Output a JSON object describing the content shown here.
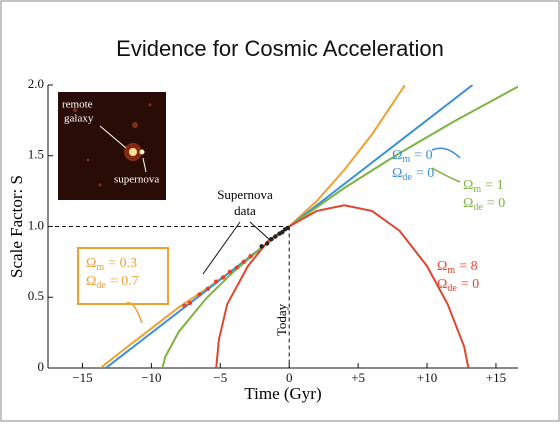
{
  "chart_data": {
    "type": "line",
    "title": "Evidence for Cosmic Acceleration",
    "xlabel": "Time (Gyr)",
    "ylabel": "Scale Factor:  S",
    "xlim": [
      -17.5,
      16.6
    ],
    "ylim": [
      0,
      2
    ],
    "xticks": [
      {
        "value": -15,
        "label": "−15"
      },
      {
        "value": -10,
        "label": "−10"
      },
      {
        "value": -5,
        "label": "−5"
      },
      0,
      {
        "value": 5,
        "label": "+5"
      },
      {
        "value": 10,
        "label": "+10"
      },
      {
        "value": 15,
        "label": "+15"
      }
    ],
    "yticks": [
      0,
      0.5,
      {
        "value": 1,
        "label": "1.0"
      },
      1.5,
      {
        "value": 2,
        "label": "2.0"
      }
    ],
    "series": [
      {
        "color": "#f0a030",
        "label": [
          {
            "symbol": "Ω",
            "sub": "m",
            "text": "= 0.3"
          },
          {
            "symbol": "Ω",
            "sub": "de",
            "text": "= 0.7"
          }
        ],
        "x": [
          -13.7,
          -12,
          -10,
          -8,
          -6,
          -4,
          -2,
          0,
          2,
          4,
          6,
          8.4
        ],
        "values": [
          0,
          0.13,
          0.28,
          0.43,
          0.56,
          0.7,
          0.85,
          1,
          1.18,
          1.4,
          1.65,
          2
        ]
      },
      {
        "color": "#3a8fdc",
        "label": [
          {
            "symbol": "Ω",
            "sub": "m",
            "text": "= 0"
          },
          {
            "symbol": "Ω",
            "sub": "de",
            "text": "= 0"
          }
        ],
        "x": [
          -13.3,
          0,
          13.3
        ],
        "values": [
          0,
          1,
          2
        ]
      },
      {
        "color": "#7cb342",
        "label": [
          {
            "symbol": "Ω",
            "sub": "m",
            "text": "= 1"
          },
          {
            "symbol": "Ω",
            "sub": "de",
            "text": "= 0"
          }
        ],
        "x": [
          -9.2,
          -9,
          -8,
          -6,
          -4,
          -2,
          0,
          4,
          8,
          12,
          16.6
        ],
        "values": [
          0,
          0.078,
          0.257,
          0.495,
          0.684,
          0.849,
          1,
          1.272,
          1.518,
          1.745,
          1.989
        ]
      },
      {
        "color": "#e0452f",
        "label": [
          {
            "symbol": "Ω",
            "sub": "m",
            "text": "= 8"
          },
          {
            "symbol": "Ω",
            "sub": "de",
            "text": "= 0"
          }
        ],
        "x": [
          -5.3,
          -5.1,
          -4.5,
          -3,
          -1.5,
          0,
          2,
          4,
          6,
          8,
          10,
          11.5,
          12.7,
          13
        ],
        "values": [
          0,
          0.2,
          0.45,
          0.72,
          0.9,
          1,
          1.11,
          1.15,
          1.11,
          0.97,
          0.72,
          0.45,
          0.15,
          0
        ]
      }
    ],
    "supernova": {
      "label": [
        "Supernova",
        "data"
      ],
      "points": [
        {
          "color": "#e0452f",
          "x": [
            -7.6,
            -7.2,
            -6.5,
            -5.9,
            -5.3,
            -4.8,
            -4.3,
            -3.8,
            -3.3,
            -2.8
          ],
          "values": [
            0.44,
            0.46,
            0.52,
            0.56,
            0.61,
            0.64,
            0.68,
            0.71,
            0.75,
            0.79
          ]
        },
        {
          "color": "#222222",
          "x": [
            -2,
            -1.6,
            -1.3,
            -1,
            -0.7,
            -0.5,
            -0.3,
            -0.1
          ],
          "values": [
            0.86,
            0.88,
            0.91,
            0.93,
            0.95,
            0.96,
            0.98,
            0.99
          ]
        }
      ]
    },
    "today_label": "Today",
    "inset": {
      "galaxy_label": [
        "remote",
        "galaxy"
      ],
      "supernova_label": "supernova"
    }
  }
}
